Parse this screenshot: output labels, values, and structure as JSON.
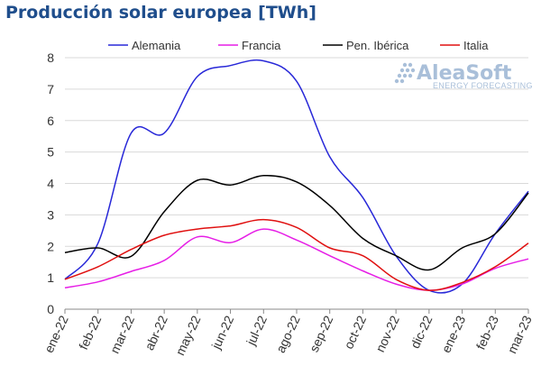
{
  "chart_data": {
    "type": "line",
    "title": "Producción solar europea [TWh]",
    "categories": [
      "ene-22",
      "feb-22",
      "mar-22",
      "abr-22",
      "may-22",
      "jun-22",
      "jul-22",
      "ago-22",
      "sep-22",
      "oct-22",
      "nov-22",
      "dic-22",
      "ene-23",
      "feb-23",
      "mar-23"
    ],
    "ylim": [
      0,
      8
    ],
    "yticks": [
      0,
      1,
      2,
      3,
      4,
      5,
      6,
      7,
      8
    ],
    "grid": true,
    "legend": "top",
    "series": [
      {
        "name": "Alemania",
        "color": "#2828d8",
        "values": [
          0.95,
          2.1,
          5.6,
          5.6,
          7.4,
          7.75,
          7.9,
          7.25,
          4.85,
          3.55,
          1.7,
          0.6,
          0.8,
          2.4,
          3.75
        ]
      },
      {
        "name": "Francia",
        "color": "#e61ee6",
        "values": [
          0.68,
          0.87,
          1.2,
          1.55,
          2.3,
          2.12,
          2.55,
          2.2,
          1.7,
          1.22,
          0.8,
          0.6,
          0.8,
          1.3,
          1.6
        ]
      },
      {
        "name": "Pen. Ibérica",
        "color": "#000000",
        "values": [
          1.8,
          1.95,
          1.68,
          3.1,
          4.1,
          3.95,
          4.25,
          4.05,
          3.3,
          2.25,
          1.7,
          1.25,
          1.95,
          2.4,
          3.7
        ]
      },
      {
        "name": "Italia",
        "color": "#e01010",
        "values": [
          0.95,
          1.35,
          1.9,
          2.35,
          2.55,
          2.65,
          2.85,
          2.6,
          1.95,
          1.7,
          0.95,
          0.6,
          0.85,
          1.35,
          2.1
        ]
      }
    ]
  },
  "logo": {
    "main": "AleaSoft",
    "sub": "ENERGY FORECASTING"
  }
}
